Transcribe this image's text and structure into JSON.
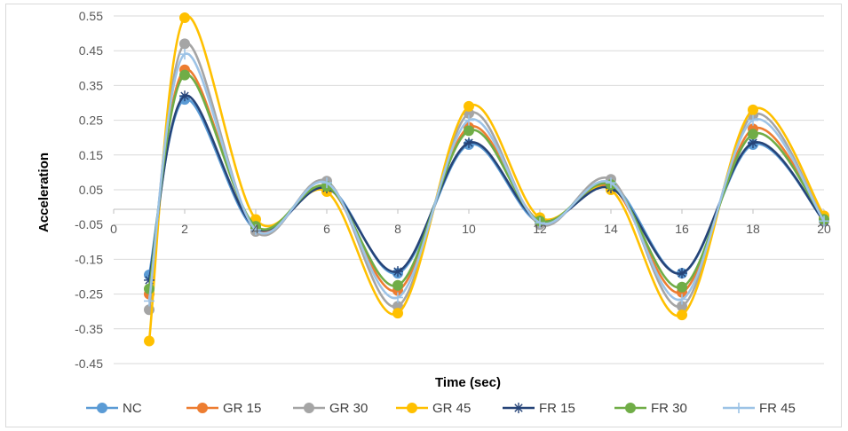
{
  "chart_data": {
    "type": "line",
    "smooth": true,
    "xlabel": "Time (sec)",
    "ylabel": "Acceleration",
    "xlim": [
      0,
      20
    ],
    "ylim": [
      -0.45,
      0.55
    ],
    "x_ticks": [
      0,
      2,
      4,
      6,
      8,
      10,
      12,
      14,
      16,
      18,
      20
    ],
    "y_ticks": [
      "0.55",
      "0.45",
      "0.35",
      "0.25",
      "0.15",
      "0.05",
      "-0.05",
      "-0.15",
      "-0.25",
      "-0.35",
      "-0.45"
    ],
    "y_tick_values": [
      0.55,
      0.45,
      0.35,
      0.25,
      0.15,
      0.05,
      -0.05,
      -0.15,
      -0.25,
      -0.35,
      -0.45
    ],
    "grid": "horizontal",
    "legend_position": "bottom",
    "x": [
      1,
      2,
      4,
      6,
      8,
      10,
      12,
      14,
      16,
      18,
      20
    ],
    "series": [
      {
        "name": "NC",
        "color": "#5b9bd5",
        "marker": "circle",
        "values": [
          -0.195,
          0.31,
          -0.065,
          0.06,
          -0.19,
          0.18,
          -0.045,
          0.065,
          -0.19,
          0.18,
          -0.04
        ]
      },
      {
        "name": "GR 15",
        "color": "#ed7d31",
        "marker": "circle",
        "values": [
          -0.25,
          0.395,
          -0.06,
          0.06,
          -0.24,
          0.23,
          -0.04,
          0.06,
          -0.245,
          0.225,
          -0.035
        ]
      },
      {
        "name": "GR 30",
        "color": "#a5a5a5",
        "marker": "circle",
        "values": [
          -0.295,
          0.47,
          -0.07,
          0.075,
          -0.285,
          0.27,
          -0.05,
          0.08,
          -0.285,
          0.265,
          -0.04
        ]
      },
      {
        "name": "GR 45",
        "color": "#ffc000",
        "marker": "circle",
        "values": [
          -0.385,
          0.545,
          -0.035,
          0.045,
          -0.305,
          0.29,
          -0.03,
          0.05,
          -0.31,
          0.28,
          -0.025
        ]
      },
      {
        "name": "FR 15",
        "color": "#264478",
        "marker": "star",
        "values": [
          -0.21,
          0.32,
          -0.06,
          0.055,
          -0.185,
          0.185,
          -0.04,
          0.055,
          -0.19,
          0.185,
          -0.04
        ]
      },
      {
        "name": "FR 30",
        "color": "#70ad47",
        "marker": "circle",
        "values": [
          -0.235,
          0.38,
          -0.055,
          0.06,
          -0.225,
          0.22,
          -0.04,
          0.065,
          -0.23,
          0.21,
          -0.035
        ]
      },
      {
        "name": "FR 45",
        "color": "#9dc3e6",
        "marker": "plus",
        "values": [
          -0.27,
          0.44,
          -0.065,
          0.07,
          -0.26,
          0.25,
          -0.045,
          0.07,
          -0.265,
          0.25,
          -0.04
        ]
      }
    ]
  }
}
